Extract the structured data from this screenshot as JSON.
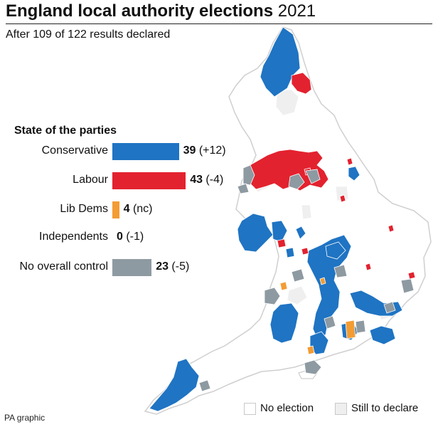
{
  "header": {
    "title_bold": "England local authority elections",
    "title_year": "2021",
    "subtitle": "After 109 of 122 results declared"
  },
  "colors": {
    "conservative": "#1f74c3",
    "labour": "#e3222f",
    "lib_dems": "#f39c34",
    "independents": "#b0b0b0",
    "no_overall_control": "#8e9aa2",
    "no_election": "#ffffff",
    "still_to_declare": "#efefef",
    "land_outline": "#d0d0d0"
  },
  "chart_data": {
    "type": "bar",
    "title": "State of the parties",
    "orientation": "horizontal",
    "categories": [
      "Conservative",
      "Labour",
      "Lib Dems",
      "Independents",
      "No overall control"
    ],
    "values": [
      39,
      43,
      4,
      0,
      23
    ],
    "changes": [
      "(+12)",
      "(-4)",
      "(nc)",
      "(-1)",
      "(-5)"
    ]
  },
  "map_legend": {
    "no_election": "No election",
    "still_to_declare": "Still to declare"
  },
  "credit": "PA graphic"
}
